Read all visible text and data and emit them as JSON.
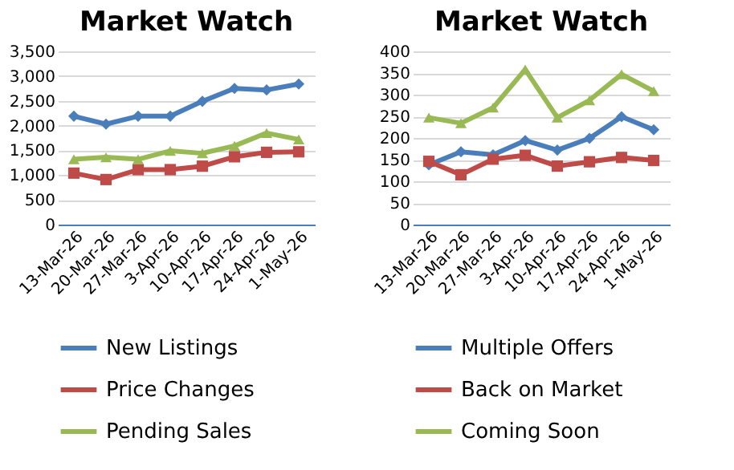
{
  "chart_data": [
    {
      "type": "line",
      "title": "Market Watch",
      "categories": [
        "13-Mar-26",
        "20-Mar-26",
        "27-Mar-26",
        "3-Apr-26",
        "10-Apr-26",
        "17-Apr-26",
        "24-Apr-26",
        "1-May-26"
      ],
      "series": [
        {
          "name": "New Listings",
          "color": "#4a7ebb",
          "marker": "diamond",
          "values": [
            2190,
            2030,
            2190,
            2190,
            2490,
            2750,
            2720,
            2840
          ]
        },
        {
          "name": "Price Changes",
          "color": "#be4b48",
          "marker": "square",
          "values": [
            1040,
            910,
            1110,
            1110,
            1180,
            1370,
            1460,
            1470
          ]
        },
        {
          "name": "Pending Sales",
          "color": "#98b954",
          "marker": "triangle",
          "values": [
            1320,
            1360,
            1320,
            1490,
            1440,
            1590,
            1850,
            1720
          ]
        }
      ],
      "ylim": [
        0,
        3500
      ],
      "yticks": [
        0,
        {
          "value": 500,
          "label": "500"
        },
        {
          "value": 1000,
          "label": "1,000"
        },
        {
          "value": 1500,
          "label": "1,500"
        },
        {
          "value": 2000,
          "label": "2,000"
        },
        {
          "value": 2500,
          "label": "2,500"
        },
        {
          "value": 3000,
          "label": "3,000"
        },
        {
          "value": 3500,
          "label": "3,500"
        }
      ],
      "grid": "y",
      "legend": "bottom"
    },
    {
      "type": "line",
      "title": "Market Watch",
      "categories": [
        "13-Mar-26",
        "20-Mar-26",
        "27-Mar-26",
        "3-Apr-26",
        "10-Apr-26",
        "17-Apr-26",
        "24-Apr-26",
        "1-May-26"
      ],
      "series": [
        {
          "name": "Multiple Offers",
          "color": "#4a7ebb",
          "marker": "diamond",
          "values": [
            138,
            168,
            161,
            194,
            172,
            199,
            249,
            219
          ]
        },
        {
          "name": "Back on Market",
          "color": "#be4b48",
          "marker": "square",
          "values": [
            146,
            115,
            151,
            160,
            135,
            145,
            155,
            148
          ]
        },
        {
          "name": "Coming Soon",
          "color": "#98b954",
          "marker": "triangle",
          "values": [
            247,
            234,
            270,
            358,
            247,
            287,
            347,
            308
          ]
        }
      ],
      "ylim": [
        0,
        400
      ],
      "yticks": [
        0,
        50,
        100,
        150,
        200,
        250,
        300,
        350,
        400
      ],
      "grid": "y",
      "legend": "bottom"
    }
  ]
}
